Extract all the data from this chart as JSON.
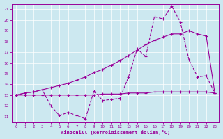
{
  "xlabel": "Windchill (Refroidissement éolien,°C)",
  "background_color": "#cce8f0",
  "line_color": "#990099",
  "grid_color": "#aaddcc",
  "xlim": [
    -0.5,
    23.5
  ],
  "ylim": [
    10.5,
    21.5
  ],
  "yticks": [
    11,
    12,
    13,
    14,
    15,
    16,
    17,
    18,
    19,
    20,
    21
  ],
  "xticks": [
    0,
    1,
    2,
    3,
    4,
    5,
    6,
    7,
    8,
    9,
    10,
    11,
    12,
    13,
    14,
    15,
    16,
    17,
    18,
    19,
    20,
    21,
    22,
    23
  ],
  "line1_x": [
    0,
    1,
    2,
    3,
    4,
    5,
    6,
    7,
    8,
    9,
    10,
    11,
    12,
    13,
    14,
    15,
    16,
    17,
    18,
    19,
    20,
    21,
    22,
    23
  ],
  "line1_y": [
    13.0,
    13.2,
    13.3,
    13.5,
    13.7,
    13.9,
    14.1,
    14.4,
    14.7,
    15.1,
    15.4,
    15.8,
    16.2,
    16.7,
    17.2,
    17.7,
    18.1,
    18.4,
    18.7,
    18.7,
    19.0,
    18.7,
    18.5,
    13.2
  ],
  "line2_x": [
    0,
    1,
    2,
    3,
    4,
    5,
    6,
    7,
    8,
    9,
    10,
    11,
    12,
    13,
    14,
    15,
    16,
    17,
    18,
    19,
    20,
    21,
    22,
    23
  ],
  "line2_y": [
    13.0,
    13.2,
    13.3,
    13.5,
    12.0,
    11.1,
    11.4,
    11.1,
    10.8,
    13.4,
    12.5,
    12.6,
    12.7,
    14.7,
    17.3,
    16.6,
    20.3,
    20.1,
    21.3,
    19.8,
    16.3,
    14.7,
    14.8,
    13.2
  ],
  "line3_x": [
    0,
    1,
    2,
    3,
    4,
    5,
    6,
    7,
    8,
    9,
    10,
    11,
    12,
    13,
    14,
    15,
    16,
    17,
    18,
    19,
    20,
    21,
    22,
    23
  ],
  "line3_y": [
    13.0,
    13.0,
    13.0,
    13.0,
    13.0,
    13.0,
    13.0,
    13.0,
    13.0,
    13.0,
    13.1,
    13.1,
    13.1,
    13.2,
    13.2,
    13.2,
    13.3,
    13.3,
    13.3,
    13.3,
    13.3,
    13.3,
    13.3,
    13.2
  ]
}
